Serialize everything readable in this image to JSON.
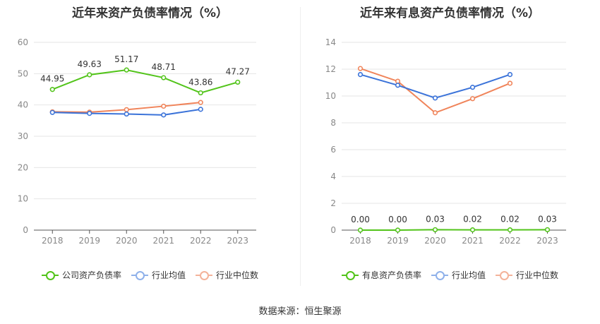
{
  "source": "数据来源：恒生聚源",
  "chart_data": [
    {
      "type": "line",
      "title": "近年来资产负债率情况（%）",
      "categories": [
        "2018",
        "2019",
        "2020",
        "2021",
        "2022",
        "2023"
      ],
      "ylim": [
        0,
        60
      ],
      "yticks": [
        0,
        10,
        20,
        30,
        40,
        50,
        60
      ],
      "grid": true,
      "legend_position": "bottom",
      "series": [
        {
          "name": "公司资产负债率",
          "color": "#52c41a",
          "values": [
            44.95,
            49.63,
            51.17,
            48.71,
            43.86,
            47.27
          ],
          "labels": [
            "44.95",
            "49.63",
            "51.17",
            "48.71",
            "43.86",
            "47.27"
          ]
        },
        {
          "name": "行业均值",
          "color": "#3b73d9",
          "values": [
            37.6,
            37.3,
            37.1,
            36.8,
            38.6,
            null
          ]
        },
        {
          "name": "行业中位数",
          "color": "#f0845a",
          "values": [
            37.8,
            37.7,
            38.5,
            39.6,
            40.8,
            null
          ]
        }
      ]
    },
    {
      "type": "line",
      "title": "近年来有息资产负债率情况（%）",
      "categories": [
        "2018",
        "2019",
        "2020",
        "2021",
        "2022",
        "2023"
      ],
      "ylim": [
        0,
        14
      ],
      "yticks": [
        0,
        2,
        4,
        6,
        8,
        10,
        12,
        14
      ],
      "grid": true,
      "legend_position": "bottom",
      "series": [
        {
          "name": "有息资产负债率",
          "color": "#52c41a",
          "values": [
            0.0,
            0.0,
            0.03,
            0.02,
            0.02,
            0.03
          ],
          "labels": [
            "0.00",
            "0.00",
            "0.03",
            "0.02",
            "0.02",
            "0.03"
          ]
        },
        {
          "name": "行业均值",
          "color": "#3b73d9",
          "values": [
            11.6,
            10.8,
            9.85,
            10.65,
            11.6,
            null
          ]
        },
        {
          "name": "行业中位数",
          "color": "#f0845a",
          "values": [
            12.05,
            11.1,
            8.75,
            9.8,
            10.95,
            null
          ]
        }
      ]
    }
  ]
}
